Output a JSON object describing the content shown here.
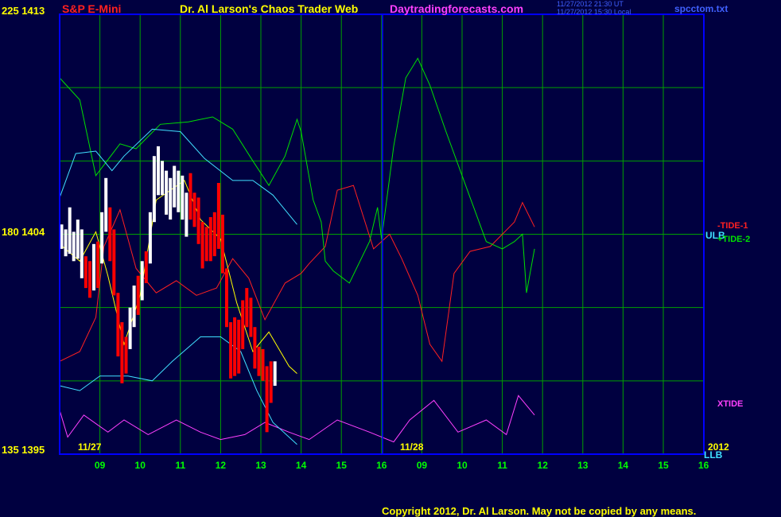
{
  "header": {
    "instrument": "S&P E-Mini",
    "author": "Dr. Al Larson's Chaos Trader Web",
    "site": "Daytradingforecasts.com",
    "time_ut": "11/27/2012 21:30 UT",
    "time_local": "11/27/2012 15:30 Local",
    "file": "spcctom.txt"
  },
  "copyright": "Copyright 2012, Dr. Al Larson. May not be copied by any means.",
  "colors": {
    "background": "#000040",
    "frame": "#0000ff",
    "grid": "#00a000",
    "price_up": "#ffffff",
    "price_down": "#ff0000",
    "tide1": "#ff2020",
    "tide2": "#00e000",
    "xtide": "#ff40ff",
    "band": "#40e0ff",
    "moving_avg": "#ffff00",
    "axis_text": "#ffff00",
    "x_ticks": "#00ff00"
  },
  "chart_data": {
    "type": "line",
    "y_left_labels": [
      {
        "value": 1413,
        "label": "225 1413"
      },
      {
        "value": 1404,
        "label": "180 1404"
      },
      {
        "value": 1395,
        "label": "135 1395"
      }
    ],
    "ylim": [
      1395,
      1413
    ],
    "date_labels": [
      "11/27",
      "11/28"
    ],
    "year_label": "2012",
    "x_ticks_day1": [
      "09",
      "10",
      "11",
      "12",
      "13",
      "14",
      "15",
      "16"
    ],
    "x_ticks_day2": [
      "09",
      "10",
      "11",
      "12",
      "13",
      "14",
      "15",
      "16"
    ],
    "series": [
      {
        "name": "-TIDE-1",
        "color": "#ff2020",
        "values": [
          [
            0,
            1398.8
          ],
          [
            0.5,
            1399.2
          ],
          [
            0.9,
            1400.6
          ],
          [
            1.1,
            1403.5
          ],
          [
            1.5,
            1405
          ],
          [
            1.9,
            1402.6
          ],
          [
            2.4,
            1401.6
          ],
          [
            2.9,
            1402.1
          ],
          [
            3.4,
            1401.5
          ],
          [
            3.9,
            1401.8
          ],
          [
            4.3,
            1403
          ],
          [
            4.7,
            1402.2
          ],
          [
            5.1,
            1400.5
          ],
          [
            5.6,
            1402
          ],
          [
            6.0,
            1402.4
          ],
          [
            6.2,
            1402.8
          ],
          [
            6.6,
            1403.5
          ],
          [
            6.9,
            1405.8
          ],
          [
            7.3,
            1406
          ],
          [
            7.8,
            1403.4
          ],
          [
            8.2,
            1404
          ],
          [
            8.5,
            1403
          ],
          [
            8.9,
            1401.5
          ],
          [
            9.2,
            1399.5
          ],
          [
            9.5,
            1398.8
          ],
          [
            9.8,
            1402.4
          ],
          [
            10.2,
            1403.3
          ],
          [
            10.7,
            1403.5
          ],
          [
            11.0,
            1404
          ],
          [
            11.3,
            1404.5
          ],
          [
            11.5,
            1405.3
          ],
          [
            11.8,
            1404.3
          ]
        ]
      },
      {
        "name": "+TIDE-2",
        "color": "#00e000",
        "values": [
          [
            0,
            1410.4
          ],
          [
            0.5,
            1409.5
          ],
          [
            0.9,
            1406.4
          ],
          [
            1.5,
            1407.7
          ],
          [
            1.9,
            1407.5
          ],
          [
            2.5,
            1408.5
          ],
          [
            3.2,
            1408.6
          ],
          [
            3.8,
            1408.8
          ],
          [
            4.3,
            1408.3
          ],
          [
            4.8,
            1407
          ],
          [
            5.2,
            1406
          ],
          [
            5.6,
            1407.2
          ],
          [
            5.9,
            1408.7
          ],
          [
            6.0,
            1408.2
          ],
          [
            6.3,
            1405.4
          ],
          [
            6.5,
            1404.5
          ],
          [
            6.6,
            1402.9
          ],
          [
            6.8,
            1402.5
          ],
          [
            7.2,
            1402.0
          ],
          [
            7.7,
            1403.7
          ],
          [
            7.9,
            1405.1
          ],
          [
            8.0,
            1403.8
          ],
          [
            8.3,
            1407.6
          ],
          [
            8.6,
            1410.4
          ],
          [
            8.9,
            1411.2
          ],
          [
            9.2,
            1410.1
          ],
          [
            9.6,
            1408.2
          ],
          [
            10.2,
            1405.5
          ],
          [
            10.6,
            1403.7
          ],
          [
            11.0,
            1403.4
          ],
          [
            11.3,
            1403.7
          ],
          [
            11.5,
            1404
          ],
          [
            11.6,
            1401.6
          ],
          [
            11.8,
            1403.4
          ]
        ]
      },
      {
        "name": "XTIDE",
        "color": "#ff40ff",
        "values": [
          [
            0,
            1396.8
          ],
          [
            0.2,
            1395.7
          ],
          [
            0.6,
            1396.6
          ],
          [
            1.2,
            1395.9
          ],
          [
            1.6,
            1396.4
          ],
          [
            2.2,
            1395.8
          ],
          [
            2.9,
            1396.4
          ],
          [
            3.5,
            1395.9
          ],
          [
            4.0,
            1395.6
          ],
          [
            4.6,
            1395.8
          ],
          [
            5.1,
            1396.3
          ],
          [
            5.7,
            1395.9
          ],
          [
            6.2,
            1395.6
          ],
          [
            6.9,
            1396.4
          ],
          [
            7.7,
            1395.9
          ],
          [
            8.3,
            1395.5
          ],
          [
            8.7,
            1396.4
          ],
          [
            9.3,
            1397.2
          ],
          [
            9.9,
            1395.9
          ],
          [
            10.6,
            1396.4
          ],
          [
            11.1,
            1395.8
          ],
          [
            11.4,
            1397.4
          ],
          [
            11.8,
            1396.6
          ]
        ]
      },
      {
        "name": "ULB",
        "color": "#40e0ff",
        "values": [
          [
            0,
            1405.5
          ],
          [
            0.4,
            1407.3
          ],
          [
            0.9,
            1407.4
          ],
          [
            1.3,
            1406.6
          ],
          [
            1.6,
            1407.2
          ],
          [
            2.3,
            1408.3
          ],
          [
            3.0,
            1408.2
          ],
          [
            3.6,
            1407.1
          ],
          [
            4.3,
            1406.2
          ],
          [
            4.8,
            1406.2
          ],
          [
            5.3,
            1405.6
          ],
          [
            5.9,
            1404.4
          ]
        ]
      },
      {
        "name": "LLB",
        "color": "#40e0ff",
        "values": [
          [
            0,
            1397.8
          ],
          [
            0.5,
            1397.6
          ],
          [
            1.0,
            1398.2
          ],
          [
            1.7,
            1398.2
          ],
          [
            2.3,
            1398.0
          ],
          [
            2.8,
            1398.8
          ],
          [
            3.5,
            1399.8
          ],
          [
            4.0,
            1399.8
          ],
          [
            4.5,
            1399.2
          ],
          [
            4.9,
            1397.6
          ],
          [
            5.3,
            1396.3
          ],
          [
            5.9,
            1395.4
          ]
        ]
      },
      {
        "name": "",
        "color": "#ffff00",
        "values": [
          [
            0,
            1403.6
          ],
          [
            0.5,
            1402.9
          ],
          [
            0.9,
            1404.1
          ],
          [
            1.2,
            1402.3
          ],
          [
            1.6,
            1399.5
          ],
          [
            2.0,
            1401.5
          ],
          [
            2.4,
            1405.4
          ],
          [
            3.1,
            1406.2
          ],
          [
            3.5,
            1404.6
          ],
          [
            4.0,
            1403.8
          ],
          [
            4.4,
            1401.2
          ],
          [
            4.8,
            1399.2
          ],
          [
            5.2,
            1400.0
          ],
          [
            5.7,
            1398.6
          ],
          [
            5.9,
            1398.3
          ]
        ]
      }
    ],
    "price_bars": [
      {
        "x": 0.05,
        "lo": 1403.4,
        "hi": 1404.4,
        "up": true
      },
      {
        "x": 0.15,
        "lo": 1403.1,
        "hi": 1404.2,
        "up": true
      },
      {
        "x": 0.25,
        "lo": 1403.2,
        "hi": 1405.1,
        "up": true
      },
      {
        "x": 0.35,
        "lo": 1402.9,
        "hi": 1404.1,
        "up": true
      },
      {
        "x": 0.45,
        "lo": 1403.0,
        "hi": 1404.6,
        "up": true
      },
      {
        "x": 0.55,
        "lo": 1402.2,
        "hi": 1404.2,
        "up": true
      },
      {
        "x": 0.65,
        "lo": 1401.8,
        "hi": 1403.1,
        "up": false
      },
      {
        "x": 0.75,
        "lo": 1401.4,
        "hi": 1402.9,
        "up": false
      },
      {
        "x": 0.85,
        "lo": 1401.7,
        "hi": 1403.6,
        "up": true
      },
      {
        "x": 0.95,
        "lo": 1401.8,
        "hi": 1403.7,
        "up": false
      },
      {
        "x": 1.05,
        "lo": 1402.8,
        "hi": 1404.9,
        "up": true
      },
      {
        "x": 1.15,
        "lo": 1404.1,
        "hi": 1406.3,
        "up": true
      },
      {
        "x": 1.25,
        "lo": 1402.9,
        "hi": 1405.1,
        "up": false
      },
      {
        "x": 1.35,
        "lo": 1401.5,
        "hi": 1404.2,
        "up": false
      },
      {
        "x": 1.45,
        "lo": 1399.0,
        "hi": 1401.6,
        "up": false
      },
      {
        "x": 1.55,
        "lo": 1397.9,
        "hi": 1400.4,
        "up": false
      },
      {
        "x": 1.65,
        "lo": 1398.3,
        "hi": 1399.8,
        "up": false
      },
      {
        "x": 1.75,
        "lo": 1399.3,
        "hi": 1401.0,
        "up": true
      },
      {
        "x": 1.85,
        "lo": 1400.2,
        "hi": 1401.9,
        "up": true
      },
      {
        "x": 1.95,
        "lo": 1400.7,
        "hi": 1402.3,
        "up": false
      },
      {
        "x": 2.05,
        "lo": 1401.3,
        "hi": 1402.9,
        "up": true
      },
      {
        "x": 2.15,
        "lo": 1402.0,
        "hi": 1403.3,
        "up": false
      },
      {
        "x": 2.25,
        "lo": 1402.8,
        "hi": 1404.9,
        "up": true
      },
      {
        "x": 2.35,
        "lo": 1404.5,
        "hi": 1407.2,
        "up": true
      },
      {
        "x": 2.45,
        "lo": 1405.6,
        "hi": 1407.6,
        "up": true
      },
      {
        "x": 2.55,
        "lo": 1405.6,
        "hi": 1407.0,
        "up": true
      },
      {
        "x": 2.65,
        "lo": 1404.8,
        "hi": 1406.6,
        "up": true
      },
      {
        "x": 2.75,
        "lo": 1404.6,
        "hi": 1406.3,
        "up": true
      },
      {
        "x": 2.85,
        "lo": 1405.1,
        "hi": 1406.8,
        "up": true
      },
      {
        "x": 2.95,
        "lo": 1404.9,
        "hi": 1406.6,
        "up": true
      },
      {
        "x": 3.05,
        "lo": 1404.6,
        "hi": 1406.4,
        "up": true
      },
      {
        "x": 3.15,
        "lo": 1403.9,
        "hi": 1405.7,
        "up": true
      },
      {
        "x": 3.25,
        "lo": 1404.6,
        "hi": 1406.5,
        "up": false
      },
      {
        "x": 3.35,
        "lo": 1404.3,
        "hi": 1405.7,
        "up": false
      },
      {
        "x": 3.45,
        "lo": 1403.6,
        "hi": 1405.5,
        "up": false
      },
      {
        "x": 3.55,
        "lo": 1402.6,
        "hi": 1404.5,
        "up": false
      },
      {
        "x": 3.65,
        "lo": 1402.9,
        "hi": 1404.3,
        "up": false
      },
      {
        "x": 3.75,
        "lo": 1402.9,
        "hi": 1404.7,
        "up": false
      },
      {
        "x": 3.85,
        "lo": 1403.1,
        "hi": 1404.9,
        "up": false
      },
      {
        "x": 3.95,
        "lo": 1403.4,
        "hi": 1406.1,
        "up": false
      },
      {
        "x": 4.05,
        "lo": 1402.4,
        "hi": 1404.8,
        "up": false
      },
      {
        "x": 4.15,
        "lo": 1400.2,
        "hi": 1402.6,
        "up": false
      },
      {
        "x": 4.25,
        "lo": 1398.1,
        "hi": 1400.4,
        "up": false
      },
      {
        "x": 4.35,
        "lo": 1398.2,
        "hi": 1400.6,
        "up": false
      },
      {
        "x": 4.45,
        "lo": 1398.3,
        "hi": 1400.5,
        "up": false
      },
      {
        "x": 4.55,
        "lo": 1399.3,
        "hi": 1401.3,
        "up": false
      },
      {
        "x": 4.65,
        "lo": 1400.2,
        "hi": 1401.8,
        "up": false
      },
      {
        "x": 4.75,
        "lo": 1399.8,
        "hi": 1401.4,
        "up": false
      },
      {
        "x": 4.85,
        "lo": 1398.5,
        "hi": 1400.2,
        "up": false
      },
      {
        "x": 4.95,
        "lo": 1398.2,
        "hi": 1399.4,
        "up": false
      },
      {
        "x": 5.05,
        "lo": 1398.0,
        "hi": 1399.3,
        "up": false
      },
      {
        "x": 5.15,
        "lo": 1395.9,
        "hi": 1398.6,
        "up": false
      },
      {
        "x": 5.25,
        "lo": 1397.1,
        "hi": 1398.8,
        "up": false
      },
      {
        "x": 5.35,
        "lo": 1397.8,
        "hi": 1398.8,
        "up": true
      }
    ]
  },
  "labels": {
    "tide1": "-TIDE-1",
    "tide2": "+TIDE-2",
    "xtide": "XTIDE",
    "ulb": "ULB",
    "llb": "LLB"
  }
}
